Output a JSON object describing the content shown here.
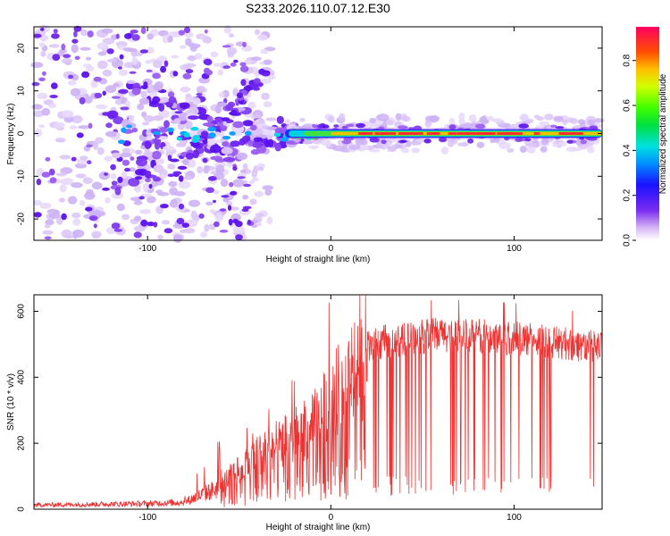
{
  "chart_data": [
    {
      "type": "heatmap",
      "title": "S233.2026.110.07.12.E30",
      "xlabel": "Height of straight line (km)",
      "ylabel": "Frequency (Hz)",
      "xlim": [
        -162,
        148
      ],
      "ylim": [
        -25,
        25
      ],
      "x_ticks": [
        -100,
        0,
        100
      ],
      "y_ticks": [
        -20,
        -10,
        0,
        10,
        20
      ],
      "colorbar": {
        "label": "Normalized spectral amplitude",
        "range": [
          0.0,
          0.95
        ],
        "ticks": [
          0.0,
          0.2,
          0.4,
          0.6,
          0.8
        ]
      },
      "description_data": {
        "coherent_line_frequency_hz": 0,
        "coherent_line_start_km": 0,
        "coherent_line_amplitude": 0.9,
        "noise_region_km": [
          -162,
          -40
        ]
      }
    },
    {
      "type": "line",
      "xlabel": "Height of straight line (km)",
      "ylabel": "SNR (10 * v/v)",
      "xlim": [
        -162,
        148
      ],
      "ylim": [
        0,
        650
      ],
      "x_ticks": [
        -100,
        0,
        100
      ],
      "y_ticks": [
        0,
        200,
        400,
        600
      ],
      "series": [
        {
          "name": "SNR",
          "color": "#ee3333",
          "envelope_x": [
            -162,
            -100,
            -80,
            -60,
            -40,
            -25,
            -10,
            0,
            10,
            20,
            30,
            60,
            100,
            148
          ],
          "envelope_y": [
            15,
            20,
            25,
            80,
            180,
            230,
            280,
            380,
            440,
            500,
            520,
            540,
            530,
            500
          ]
        }
      ]
    }
  ]
}
